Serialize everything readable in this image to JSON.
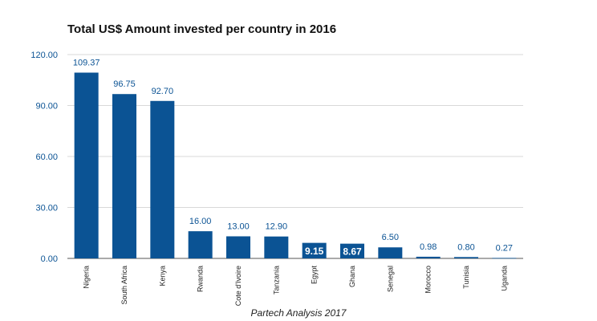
{
  "chart_data": {
    "type": "bar",
    "title": "Total US$ Amount invested per country in 2016",
    "source": "Partech Analysis 2017",
    "xlabel": "",
    "ylabel": "",
    "categories": [
      "Nigeria",
      "South Africa",
      "Kenya",
      "Rwanda",
      "Cote d'Ivoire",
      "Tanzania",
      "Egypt",
      "Ghana",
      "Senegal",
      "Morocco",
      "Tunisia",
      "Uganda"
    ],
    "values": [
      109.37,
      96.75,
      92.7,
      16.0,
      13.0,
      12.9,
      9.15,
      8.67,
      6.5,
      0.98,
      0.8,
      0.27
    ],
    "data_labels": [
      "109.37",
      "96.75",
      "92.70",
      "16.00",
      "13.00",
      "12.90",
      "9.15",
      "8.67",
      "6.50",
      "0.98",
      "0.80",
      "0.27"
    ],
    "yticks": [
      "0.00",
      "30.00",
      "60.00",
      "90.00",
      "120.00"
    ],
    "ylim": [
      0,
      120
    ],
    "grid": true,
    "legend": "none",
    "colors": {
      "bar": "#0b5394",
      "label": "#0b5394",
      "label_inside_text": "#ffffff",
      "grid": "#d9d9d9",
      "axis_text": "#0b5394",
      "category_text": "#222222"
    }
  }
}
